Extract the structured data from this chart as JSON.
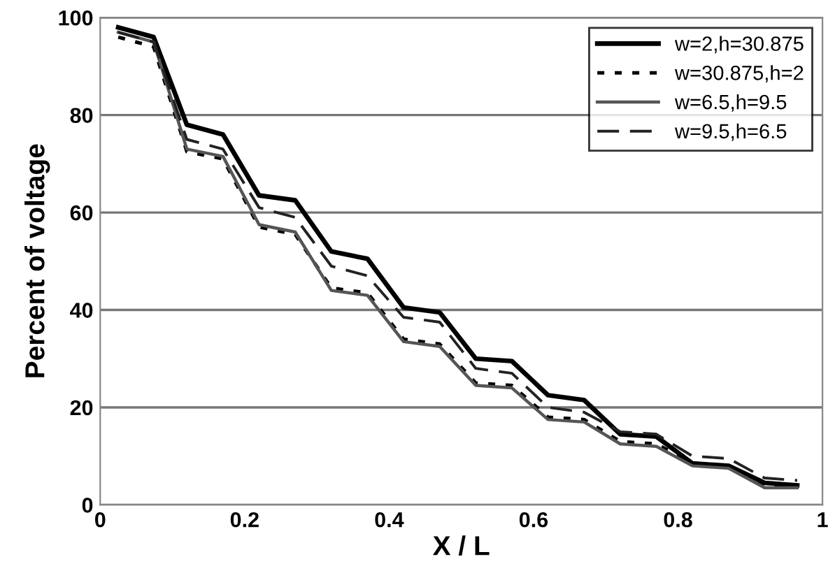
{
  "chart_data": {
    "type": "line",
    "xlabel": "X / L",
    "ylabel": "Percent of voltage",
    "xlim": [
      0,
      1
    ],
    "ylim": [
      0,
      100
    ],
    "xticks": [
      0,
      0.2,
      0.4,
      0.6,
      0.8,
      1
    ],
    "yticks": [
      0,
      20,
      40,
      60,
      80,
      100
    ],
    "grid": "y",
    "legend": "top right",
    "marker": "none",
    "x": [
      0.025,
      0.074,
      0.12,
      0.17,
      0.22,
      0.27,
      0.32,
      0.37,
      0.42,
      0.47,
      0.52,
      0.57,
      0.62,
      0.67,
      0.72,
      0.77,
      0.82,
      0.87,
      0.92,
      0.965
    ],
    "series": [
      {
        "name": "w=2,h=30.875",
        "color": "#000000",
        "line_style": "solid",
        "values": [
          98,
          96,
          78,
          76,
          63.5,
          62.5,
          52,
          50.5,
          40.5,
          39.5,
          30,
          29.5,
          22.5,
          21.5,
          14.5,
          14,
          8.5,
          8,
          4.5,
          4
        ]
      },
      {
        "name": "w=30.875,h=2",
        "color": "#000000",
        "line_style": "dotted",
        "values": [
          96,
          94,
          72.5,
          71,
          57,
          55.5,
          44.5,
          43.5,
          34,
          33,
          25,
          24.5,
          18,
          17.5,
          13,
          12.5,
          8.5,
          8,
          4,
          4
        ]
      },
      {
        "name": "w=6.5,h=9.5",
        "color": "#555555",
        "line_style": "solid",
        "values": [
          97,
          95,
          73,
          71.5,
          57.5,
          56,
          44,
          43,
          33.5,
          32.5,
          24.5,
          24,
          17.5,
          17,
          12.5,
          12,
          8,
          7.5,
          3.5,
          3.5
        ]
      },
      {
        "name": "w=9.5,h=6.5",
        "color": "#222222",
        "line_style": "dashed",
        "values": [
          97,
          95,
          75,
          73,
          61,
          59,
          49,
          47,
          38.5,
          37.5,
          28,
          27,
          20,
          19,
          15,
          14.5,
          10,
          9.5,
          5.5,
          5
        ]
      }
    ]
  }
}
